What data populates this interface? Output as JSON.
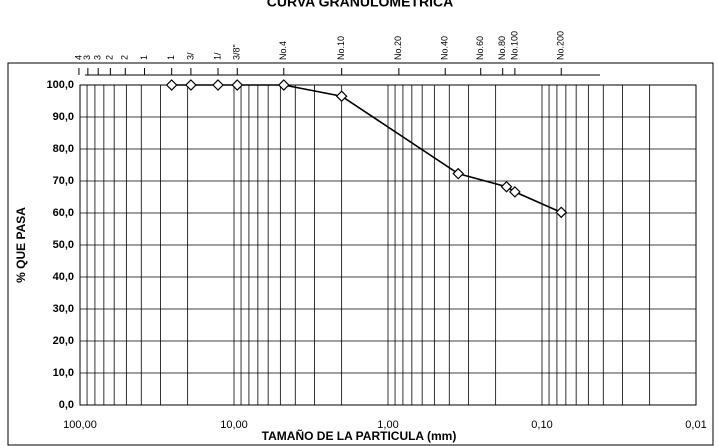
{
  "chart_data": {
    "type": "line",
    "title": "CURVA GRANULOMETRICA",
    "xlabel": "TAMAÑO DE LA PARTICULA (mm)",
    "ylabel": "% QUE PASA",
    "xscale": "log",
    "xreversed": true,
    "grid": true,
    "xlim": [
      100,
      0.01
    ],
    "xticks": [
      {
        "value": 100,
        "label": "100,00"
      },
      {
        "value": 10,
        "label": "10,00"
      },
      {
        "value": 1,
        "label": "1,00"
      },
      {
        "value": 0.1,
        "label": "0,10"
      },
      {
        "value": 0.01,
        "label": "0,01"
      }
    ],
    "ylim": [
      0,
      100
    ],
    "yticks": [
      {
        "value": 0,
        "label": "0,0"
      },
      {
        "value": 10,
        "label": "10,0"
      },
      {
        "value": 20,
        "label": "20,0"
      },
      {
        "value": 30,
        "label": "30,0"
      },
      {
        "value": 40,
        "label": "40,0"
      },
      {
        "value": 50,
        "label": "50,0"
      },
      {
        "value": 60,
        "label": "60,0"
      },
      {
        "value": 70,
        "label": "70,0"
      },
      {
        "value": 80,
        "label": "80,0"
      },
      {
        "value": 90,
        "label": "90,0"
      },
      {
        "value": 100,
        "label": "100,0"
      }
    ],
    "sieves": [
      {
        "value": 101.6,
        "label": "4"
      },
      {
        "value": 88.9,
        "label": "3"
      },
      {
        "value": 76.2,
        "label": "3"
      },
      {
        "value": 63.5,
        "label": "2"
      },
      {
        "value": 50.8,
        "label": "2"
      },
      {
        "value": 38.1,
        "label": "1"
      },
      {
        "value": 25.4,
        "label": "1"
      },
      {
        "value": 19.05,
        "label": "3/"
      },
      {
        "value": 12.7,
        "label": "1/"
      },
      {
        "value": 9.525,
        "label": "3/8\""
      },
      {
        "value": 4.75,
        "label": "No.4"
      },
      {
        "value": 2.0,
        "label": "No.10"
      },
      {
        "value": 0.85,
        "label": "No.20"
      },
      {
        "value": 0.425,
        "label": "No.40"
      },
      {
        "value": 0.25,
        "label": "No.60"
      },
      {
        "value": 0.18,
        "label": "No.80"
      },
      {
        "value": 0.15,
        "label": "No.100"
      },
      {
        "value": 0.075,
        "label": "No.200"
      }
    ],
    "color": "#000000",
    "x": [
      25.4,
      19.05,
      12.7,
      9.525,
      4.75,
      2.0,
      0.35,
      0.17,
      0.15,
      0.075
    ],
    "values": [
      100,
      100,
      100,
      100,
      100,
      96.5,
      72.3,
      68.2,
      66.6,
      60.2
    ]
  }
}
